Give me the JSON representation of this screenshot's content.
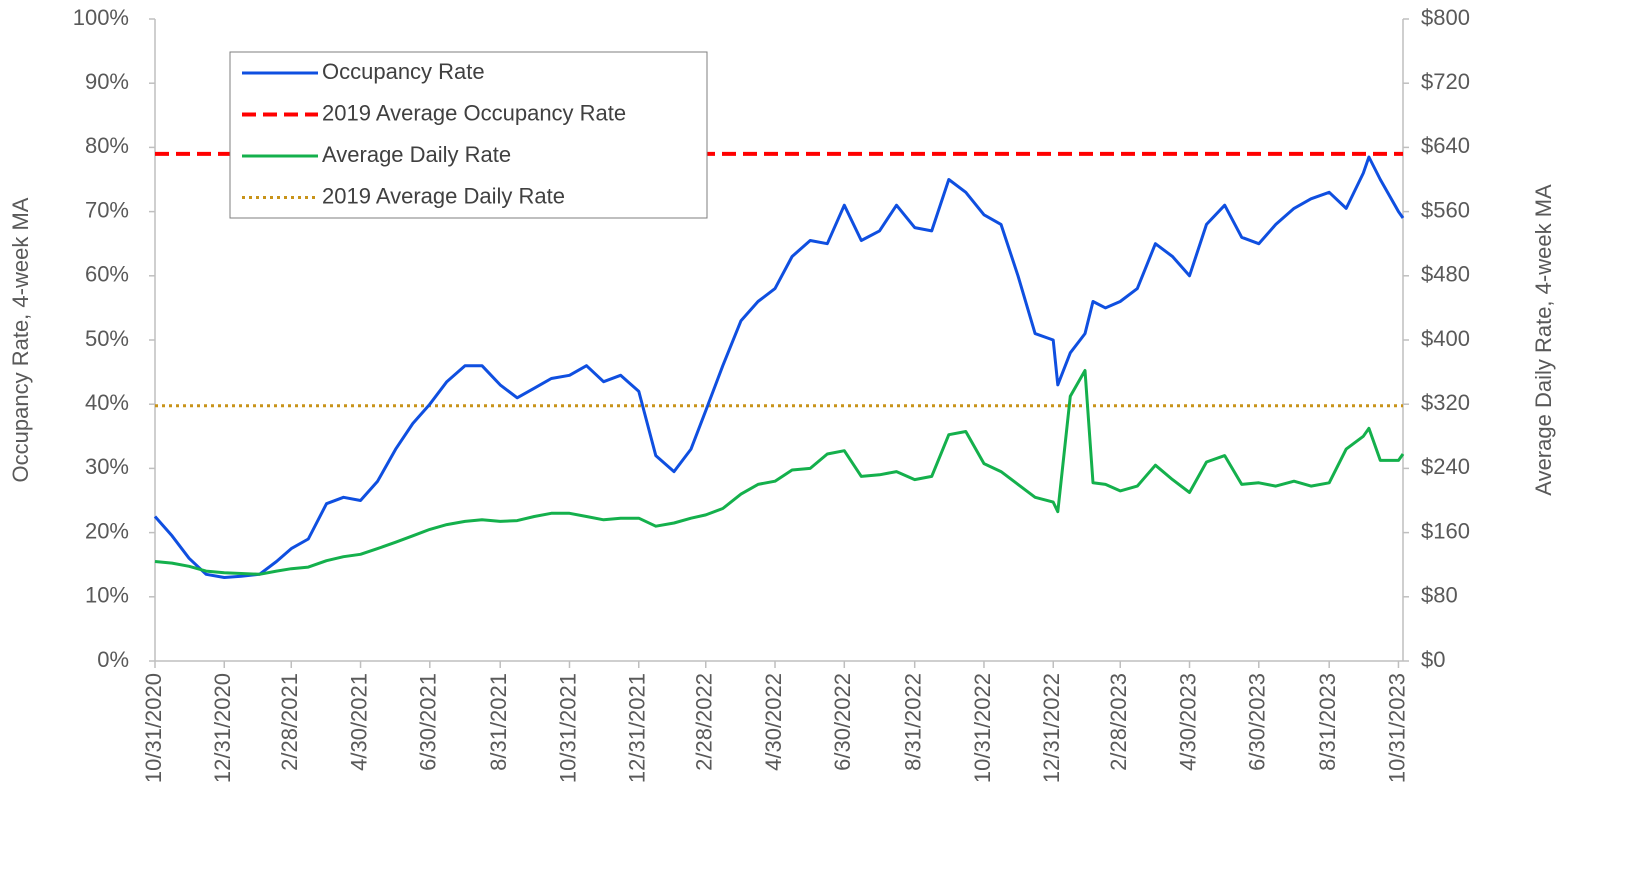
{
  "chart_data": {
    "type": "line",
    "y_label": "Occupancy Rate, 4-week MA",
    "y2_label": "Average Daily Rate, 4-week MA",
    "legend": "upper left",
    "x": [
      "2020-10-31",
      "2020-11-15",
      "2020-11-30",
      "2020-12-15",
      "2020-12-31",
      "2021-01-15",
      "2021-01-31",
      "2021-02-15",
      "2021-02-28",
      "2021-03-15",
      "2021-03-31",
      "2021-04-15",
      "2021-04-30",
      "2021-05-15",
      "2021-05-31",
      "2021-06-15",
      "2021-06-30",
      "2021-07-15",
      "2021-07-31",
      "2021-08-15",
      "2021-08-31",
      "2021-09-15",
      "2021-09-30",
      "2021-10-15",
      "2021-10-31",
      "2021-11-15",
      "2021-11-30",
      "2021-12-15",
      "2021-12-31",
      "2022-01-15",
      "2022-01-31",
      "2022-02-15",
      "2022-02-28",
      "2022-03-15",
      "2022-03-31",
      "2022-04-15",
      "2022-04-30",
      "2022-05-15",
      "2022-05-31",
      "2022-06-15",
      "2022-06-30",
      "2022-07-15",
      "2022-07-31",
      "2022-08-15",
      "2022-08-31",
      "2022-09-15",
      "2022-09-30",
      "2022-10-15",
      "2022-10-31",
      "2022-11-15",
      "2022-11-30",
      "2022-12-15",
      "2022-12-31",
      "2023-01-04",
      "2023-01-15",
      "2023-01-28",
      "2023-02-04",
      "2023-02-15",
      "2023-02-28",
      "2023-03-15",
      "2023-03-31",
      "2023-04-15",
      "2023-04-30",
      "2023-05-15",
      "2023-05-31",
      "2023-06-15",
      "2023-06-30",
      "2023-07-15",
      "2023-07-31",
      "2023-08-15",
      "2023-08-31",
      "2023-09-15",
      "2023-09-30",
      "2023-10-05",
      "2023-10-15",
      "2023-10-31",
      "2023-11-04"
    ],
    "series": [
      {
        "name": "Occupancy Rate",
        "color": "#0f4fe0",
        "axis": "y",
        "values": [
          22.5,
          19.5,
          16,
          13.5,
          13,
          13.2,
          13.5,
          15.5,
          17.5,
          19,
          24.5,
          25.5,
          25,
          28,
          33,
          37,
          40,
          43.5,
          46,
          46,
          43,
          41,
          42.5,
          44,
          44.5,
          46,
          43.5,
          44.5,
          42,
          32,
          29.5,
          33,
          39,
          46,
          53,
          56,
          58,
          63,
          65.5,
          65,
          71,
          65.5,
          67,
          71,
          67.5,
          67,
          75,
          73,
          69.5,
          68,
          60,
          51,
          50,
          43,
          48,
          51,
          56,
          55,
          56,
          58,
          65,
          63,
          60,
          68,
          71,
          66,
          65,
          68,
          70.5,
          72,
          73,
          70.5,
          76,
          78.5,
          75,
          70,
          69
        ]
      },
      {
        "name": "Average Daily Rate",
        "color": "#14b04c",
        "axis": "y2",
        "values": [
          124,
          122,
          118,
          112,
          110,
          109,
          108,
          112,
          115,
          117,
          125,
          130,
          133,
          140,
          148,
          156,
          164,
          170,
          174,
          176,
          174,
          175,
          180,
          184,
          184,
          180,
          176,
          178,
          178,
          168,
          172,
          178,
          182,
          190,
          208,
          220,
          224,
          238,
          240,
          258,
          262,
          230,
          232,
          236,
          226,
          230,
          282,
          286,
          246,
          236,
          220,
          204,
          198,
          186,
          330,
          362,
          222,
          220,
          212,
          218,
          244,
          226,
          210,
          248,
          256,
          220,
          222,
          218,
          224,
          218,
          222,
          264,
          280,
          290,
          250,
          250,
          258
        ]
      }
    ],
    "reference_lines": [
      {
        "name": "2019 Average Occupancy Rate",
        "color": "#ff0000",
        "style": "dashed",
        "axis": "y",
        "value": 79
      },
      {
        "name": "2019 Average Daily Rate",
        "color": "#c8931a",
        "style": "dotted",
        "axis": "y2",
        "value": 318
      }
    ],
    "legend_order": [
      0,
      0,
      1,
      1
    ],
    "xlim": [
      "2020-10-31",
      "2023-11-04"
    ],
    "xticks": [
      {
        "value": "2020-10-31",
        "label": "10/31/2020"
      },
      {
        "value": "2020-12-31",
        "label": "12/31/2020"
      },
      {
        "value": "2021-02-28",
        "label": "2/28/2021"
      },
      {
        "value": "2021-04-30",
        "label": "4/30/2021"
      },
      {
        "value": "2021-06-30",
        "label": "6/30/2021"
      },
      {
        "value": "2021-08-31",
        "label": "8/31/2021"
      },
      {
        "value": "2021-10-31",
        "label": "10/31/2021"
      },
      {
        "value": "2021-12-31",
        "label": "12/31/2021"
      },
      {
        "value": "2022-02-28",
        "label": "2/28/2022"
      },
      {
        "value": "2022-04-30",
        "label": "4/30/2022"
      },
      {
        "value": "2022-06-30",
        "label": "6/30/2022"
      },
      {
        "value": "2022-08-31",
        "label": "8/31/2022"
      },
      {
        "value": "2022-10-31",
        "label": "10/31/2022"
      },
      {
        "value": "2022-12-31",
        "label": "12/31/2022"
      },
      {
        "value": "2023-02-28",
        "label": "2/28/2023"
      },
      {
        "value": "2023-04-30",
        "label": "4/30/2023"
      },
      {
        "value": "2023-06-30",
        "label": "6/30/2023"
      },
      {
        "value": "2023-08-31",
        "label": "8/31/2023"
      },
      {
        "value": "2023-10-31",
        "label": "10/31/2023"
      }
    ],
    "ylim": [
      0,
      100
    ],
    "yticks": [
      {
        "value": 0,
        "label": "0%"
      },
      {
        "value": 10,
        "label": "10%"
      },
      {
        "value": 20,
        "label": "20%"
      },
      {
        "value": 30,
        "label": "30%"
      },
      {
        "value": 40,
        "label": "40%"
      },
      {
        "value": 50,
        "label": "50%"
      },
      {
        "value": 60,
        "label": "60%"
      },
      {
        "value": 70,
        "label": "70%"
      },
      {
        "value": 80,
        "label": "80%"
      },
      {
        "value": 90,
        "label": "90%"
      },
      {
        "value": 100,
        "label": "100%"
      }
    ],
    "y2lim": [
      0,
      800
    ],
    "y2ticks": [
      {
        "value": 0,
        "label": "$0"
      },
      {
        "value": 80,
        "label": "$80"
      },
      {
        "value": 160,
        "label": "$160"
      },
      {
        "value": 240,
        "label": "$240"
      },
      {
        "value": 320,
        "label": "$320"
      },
      {
        "value": 400,
        "label": "$400"
      },
      {
        "value": 480,
        "label": "$480"
      },
      {
        "value": 560,
        "label": "$560"
      },
      {
        "value": 640,
        "label": "$640"
      },
      {
        "value": 720,
        "label": "$720"
      },
      {
        "value": 800,
        "label": "$800"
      }
    ]
  }
}
